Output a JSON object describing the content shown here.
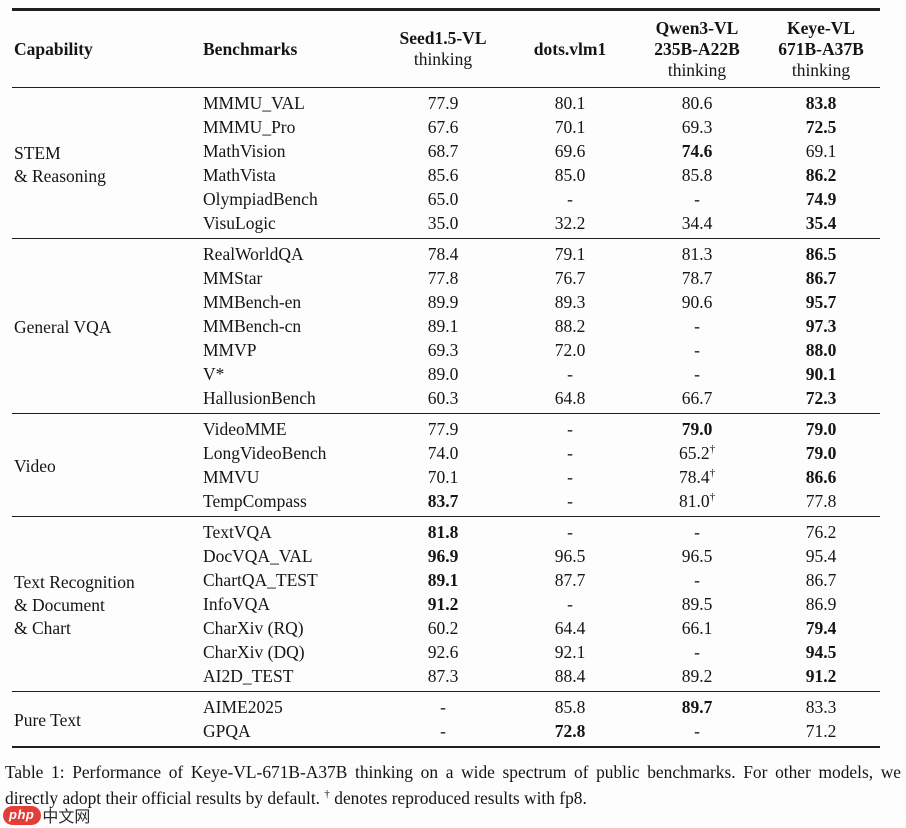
{
  "table": {
    "header": {
      "capability": "Capability",
      "benchmarks": "Benchmarks",
      "models": [
        {
          "name_lines": [
            "Seed1.5-VL"
          ],
          "suffix": "thinking"
        },
        {
          "name_lines": [
            "dots.vlm1"
          ],
          "suffix": ""
        },
        {
          "name_lines": [
            "Qwen3-VL",
            "235B-A22B"
          ],
          "suffix": "thinking"
        },
        {
          "name_lines": [
            "Keye-VL",
            "671B-A37B"
          ],
          "suffix": "thinking"
        }
      ]
    },
    "sections": [
      {
        "capability": "STEM\n& Reasoning",
        "rows": [
          {
            "benchmark": "MMMU_VAL",
            "values": [
              {
                "v": "77.9"
              },
              {
                "v": "80.1"
              },
              {
                "v": "80.6"
              },
              {
                "v": "83.8",
                "bold": true
              }
            ]
          },
          {
            "benchmark": "MMMU_Pro",
            "values": [
              {
                "v": "67.6"
              },
              {
                "v": "70.1"
              },
              {
                "v": "69.3"
              },
              {
                "v": "72.5",
                "bold": true
              }
            ]
          },
          {
            "benchmark": "MathVision",
            "values": [
              {
                "v": "68.7"
              },
              {
                "v": "69.6"
              },
              {
                "v": "74.6",
                "bold": true
              },
              {
                "v": "69.1"
              }
            ]
          },
          {
            "benchmark": "MathVista",
            "values": [
              {
                "v": "85.6"
              },
              {
                "v": "85.0"
              },
              {
                "v": "85.8"
              },
              {
                "v": "86.2",
                "bold": true
              }
            ]
          },
          {
            "benchmark": "OlympiadBench",
            "values": [
              {
                "v": "65.0"
              },
              {
                "v": "-"
              },
              {
                "v": "-"
              },
              {
                "v": "74.9",
                "bold": true
              }
            ]
          },
          {
            "benchmark": "VisuLogic",
            "values": [
              {
                "v": "35.0"
              },
              {
                "v": "32.2"
              },
              {
                "v": "34.4"
              },
              {
                "v": "35.4",
                "bold": true
              }
            ]
          }
        ]
      },
      {
        "capability": "General VQA",
        "rows": [
          {
            "benchmark": "RealWorldQA",
            "values": [
              {
                "v": "78.4"
              },
              {
                "v": "79.1"
              },
              {
                "v": "81.3"
              },
              {
                "v": "86.5",
                "bold": true
              }
            ]
          },
          {
            "benchmark": "MMStar",
            "values": [
              {
                "v": "77.8"
              },
              {
                "v": "76.7"
              },
              {
                "v": "78.7"
              },
              {
                "v": "86.7",
                "bold": true
              }
            ]
          },
          {
            "benchmark": "MMBench-en",
            "values": [
              {
                "v": "89.9"
              },
              {
                "v": "89.3"
              },
              {
                "v": "90.6"
              },
              {
                "v": "95.7",
                "bold": true
              }
            ]
          },
          {
            "benchmark": "MMBench-cn",
            "values": [
              {
                "v": "89.1"
              },
              {
                "v": "88.2"
              },
              {
                "v": "-"
              },
              {
                "v": "97.3",
                "bold": true
              }
            ]
          },
          {
            "benchmark": "MMVP",
            "values": [
              {
                "v": "69.3"
              },
              {
                "v": "72.0"
              },
              {
                "v": "-"
              },
              {
                "v": "88.0",
                "bold": true
              }
            ]
          },
          {
            "benchmark": "V*",
            "values": [
              {
                "v": "89.0"
              },
              {
                "v": "-"
              },
              {
                "v": "-"
              },
              {
                "v": "90.1",
                "bold": true
              }
            ]
          },
          {
            "benchmark": "HallusionBench",
            "values": [
              {
                "v": "60.3"
              },
              {
                "v": "64.8"
              },
              {
                "v": "66.7"
              },
              {
                "v": "72.3",
                "bold": true
              }
            ]
          }
        ]
      },
      {
        "capability": "Video",
        "rows": [
          {
            "benchmark": "VideoMME",
            "values": [
              {
                "v": "77.9"
              },
              {
                "v": "-"
              },
              {
                "v": "79.0",
                "bold": true
              },
              {
                "v": "79.0",
                "bold": true
              }
            ]
          },
          {
            "benchmark": "LongVideoBench",
            "values": [
              {
                "v": "74.0"
              },
              {
                "v": "-"
              },
              {
                "v": "65.2",
                "sup": "†"
              },
              {
                "v": "79.0",
                "bold": true
              }
            ]
          },
          {
            "benchmark": "MMVU",
            "values": [
              {
                "v": "70.1"
              },
              {
                "v": "-"
              },
              {
                "v": "78.4",
                "sup": "†"
              },
              {
                "v": "86.6",
                "bold": true
              }
            ]
          },
          {
            "benchmark": "TempCompass",
            "values": [
              {
                "v": "83.7",
                "bold": true
              },
              {
                "v": "-"
              },
              {
                "v": "81.0",
                "sup": "†"
              },
              {
                "v": "77.8"
              }
            ]
          }
        ]
      },
      {
        "capability": "Text Recognition\n& Document\n& Chart",
        "rows": [
          {
            "benchmark": "TextVQA",
            "values": [
              {
                "v": "81.8",
                "bold": true
              },
              {
                "v": "-"
              },
              {
                "v": "-"
              },
              {
                "v": "76.2"
              }
            ]
          },
          {
            "benchmark": "DocVQA_VAL",
            "values": [
              {
                "v": "96.9",
                "bold": true
              },
              {
                "v": "96.5"
              },
              {
                "v": "96.5"
              },
              {
                "v": "95.4"
              }
            ]
          },
          {
            "benchmark": "ChartQA_TEST",
            "values": [
              {
                "v": "89.1",
                "bold": true
              },
              {
                "v": "87.7"
              },
              {
                "v": "-"
              },
              {
                "v": "86.7"
              }
            ]
          },
          {
            "benchmark": "InfoVQA",
            "values": [
              {
                "v": "91.2",
                "bold": true
              },
              {
                "v": "-"
              },
              {
                "v": "89.5"
              },
              {
                "v": "86.9"
              }
            ]
          },
          {
            "benchmark": "CharXiv (RQ)",
            "values": [
              {
                "v": "60.2"
              },
              {
                "v": "64.4"
              },
              {
                "v": "66.1"
              },
              {
                "v": "79.4",
                "bold": true
              }
            ]
          },
          {
            "benchmark": "CharXiv (DQ)",
            "values": [
              {
                "v": "92.6"
              },
              {
                "v": "92.1"
              },
              {
                "v": "-"
              },
              {
                "v": "94.5",
                "bold": true
              }
            ]
          },
          {
            "benchmark": "AI2D_TEST",
            "values": [
              {
                "v": "87.3"
              },
              {
                "v": "88.4"
              },
              {
                "v": "89.2"
              },
              {
                "v": "91.2",
                "bold": true
              }
            ]
          }
        ]
      },
      {
        "capability": "Pure Text",
        "rows": [
          {
            "benchmark": "AIME2025",
            "values": [
              {
                "v": "-"
              },
              {
                "v": "85.8"
              },
              {
                "v": "89.7",
                "bold": true
              },
              {
                "v": "83.3"
              }
            ]
          },
          {
            "benchmark": "GPQA",
            "values": [
              {
                "v": "-"
              },
              {
                "v": "72.8",
                "bold": true
              },
              {
                "v": "-"
              },
              {
                "v": "71.2"
              }
            ]
          }
        ]
      }
    ]
  },
  "caption": {
    "prefix": "Table 1: Performance of Keye-VL-671B-A37B thinking on a wide spectrum of public benchmarks. For other models, we directly adopt their official results by default.",
    "dagger": "†",
    "suffix": "denotes reproduced results with fp8."
  },
  "watermark": {
    "badge": "php",
    "text": "中文网",
    "badge_color": "#e23d38"
  }
}
